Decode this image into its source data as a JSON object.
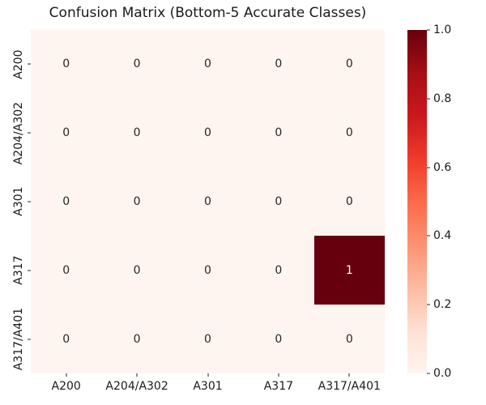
{
  "figure": {
    "background_color": "#ffffff",
    "text_color": "#1a1a1a"
  },
  "chart_data": {
    "type": "heatmap",
    "title": "Confusion Matrix (Bottom-5 Accurate Classes)",
    "x_labels": [
      "A200",
      "A204/A302",
      "A301",
      "A317",
      "A317/A401"
    ],
    "y_labels": [
      "A200",
      "A204/A302",
      "A301",
      "A317",
      "A317/A401"
    ],
    "matrix": [
      [
        0,
        0,
        0,
        0,
        0
      ],
      [
        0,
        0,
        0,
        0,
        0
      ],
      [
        0,
        0,
        0,
        0,
        0
      ],
      [
        0,
        0,
        0,
        0,
        1
      ],
      [
        0,
        0,
        0,
        0,
        0
      ]
    ],
    "value_range": [
      0,
      1
    ],
    "grid": false,
    "colormap": {
      "name": "Reds",
      "stops": [
        "#fff5f0",
        "#fee0d2",
        "#fcbba1",
        "#fc9272",
        "#fb6a4a",
        "#ef3b2c",
        "#cb181d",
        "#a50f15",
        "#67000d"
      ],
      "min_color": "#fff5f0",
      "max_color": "#67000d"
    },
    "annotation_colors": {
      "dark_text": "#262626",
      "light_text": "#ffffff"
    },
    "colorbar": {
      "position": "right",
      "ticks": [
        0.0,
        0.2,
        0.4,
        0.6,
        0.8,
        1.0
      ],
      "tick_labels": [
        "0.0",
        "0.2",
        "0.4",
        "0.6",
        "0.8",
        "1.0"
      ]
    }
  }
}
